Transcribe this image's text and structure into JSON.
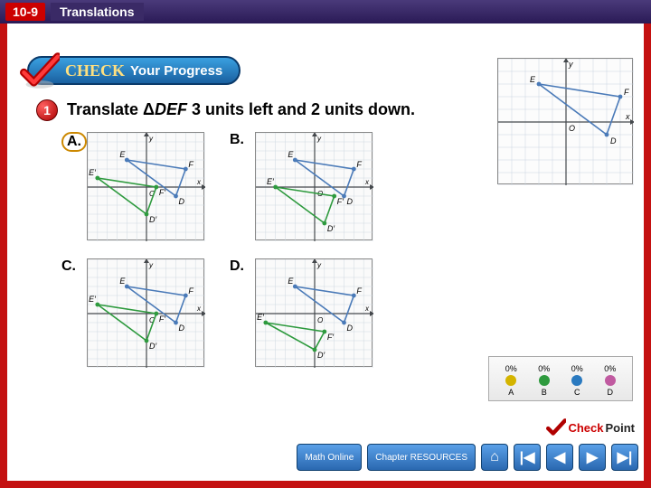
{
  "frame_color": "#c41111",
  "header": {
    "lesson_number": "10-9",
    "lesson_title": "Translations"
  },
  "banner": {
    "check_word": "CHECK",
    "rest": "Your Progress",
    "checkmark_color": "#d40000",
    "pill_gradient": [
      "#3aa0e0",
      "#1a60a0"
    ]
  },
  "question": {
    "bullet_number": "1",
    "text": "Translate Δ<i>DEF</i> 3 units left and 2 units down."
  },
  "reference_triangle": {
    "grid": {
      "xmin": -5,
      "xmax": 5,
      "ymin": -5,
      "ymax": 5,
      "step": 1,
      "grid_color": "#c9d4e0",
      "axis_color": "#44484c"
    },
    "points": {
      "D": [
        3,
        -1
      ],
      "E": [
        -2,
        3
      ],
      "F": [
        4,
        2
      ]
    },
    "stroke": "#4a7ab8",
    "fill": "none",
    "marker_color": "#3a6aa8",
    "labels": {
      "O": [
        0,
        0
      ],
      "y": "y",
      "x": "x"
    }
  },
  "options": [
    {
      "key": "A",
      "selected": true,
      "original": {
        "D": [
          3,
          -1
        ],
        "E": [
          -2,
          3
        ],
        "F": [
          4,
          2
        ],
        "color": "#4a7ab8"
      },
      "image": {
        "D": [
          0,
          -3
        ],
        "E": [
          -5,
          1
        ],
        "F": [
          1,
          0
        ],
        "color": "#2e9a3e",
        "labels": [
          "D′",
          "E′",
          "F′"
        ]
      }
    },
    {
      "key": "B",
      "selected": false,
      "original": {
        "D": [
          3,
          -1
        ],
        "E": [
          -2,
          3
        ],
        "F": [
          4,
          2
        ],
        "color": "#4a7ab8"
      },
      "image": {
        "D": [
          1,
          -4
        ],
        "E": [
          -4,
          0
        ],
        "F": [
          2,
          -1
        ],
        "color": "#2e9a3e",
        "labels": [
          "D′",
          "E′",
          "F′"
        ]
      }
    },
    {
      "key": "C",
      "selected": false,
      "original": {
        "D": [
          3,
          -1
        ],
        "E": [
          -2,
          3
        ],
        "F": [
          4,
          2
        ],
        "color": "#4a7ab8"
      },
      "image": {
        "D": [
          0,
          -3
        ],
        "E": [
          -5,
          1
        ],
        "F": [
          1,
          0
        ],
        "color": "#2e9a3e",
        "mapping_dashes": true,
        "labels": [
          "D′",
          "E′",
          "F′"
        ]
      }
    },
    {
      "key": "D",
      "selected": false,
      "original": {
        "D": [
          3,
          -1
        ],
        "E": [
          -2,
          3
        ],
        "F": [
          4,
          2
        ],
        "color": "#4a7ab8"
      },
      "image": {
        "D": [
          0,
          -4
        ],
        "E": [
          -5,
          -1
        ],
        "F": [
          1,
          -2
        ],
        "color": "#2e9a3e",
        "labels": [
          "D′",
          "E′",
          "F′"
        ]
      }
    }
  ],
  "option_grid": {
    "xmin": -6,
    "xmax": 6,
    "ymin": -6,
    "ymax": 6,
    "step": 1,
    "grid_color": "#cfd8e0",
    "axis_color": "#44484c",
    "origin_label": "O",
    "ylabel": "y",
    "xlabel": "x",
    "label_fontsize": 8
  },
  "vote": {
    "entries": [
      {
        "label": "A",
        "pct": "0%",
        "color": "#d4b400"
      },
      {
        "label": "B",
        "pct": "0%",
        "color": "#2e9a3e"
      },
      {
        "label": "C",
        "pct": "0%",
        "color": "#2a7ac0"
      },
      {
        "label": "D",
        "pct": "0%",
        "color": "#c05aa0"
      }
    ]
  },
  "checkpoint": {
    "check": "Check",
    "point": "Point"
  },
  "footer": {
    "math_online": "Math Online",
    "chapter_resources": "Chapter RESOURCES",
    "nav": {
      "home": "⌂",
      "first": "|◀",
      "prev": "◀",
      "next": "▶",
      "last": "▶|"
    }
  }
}
